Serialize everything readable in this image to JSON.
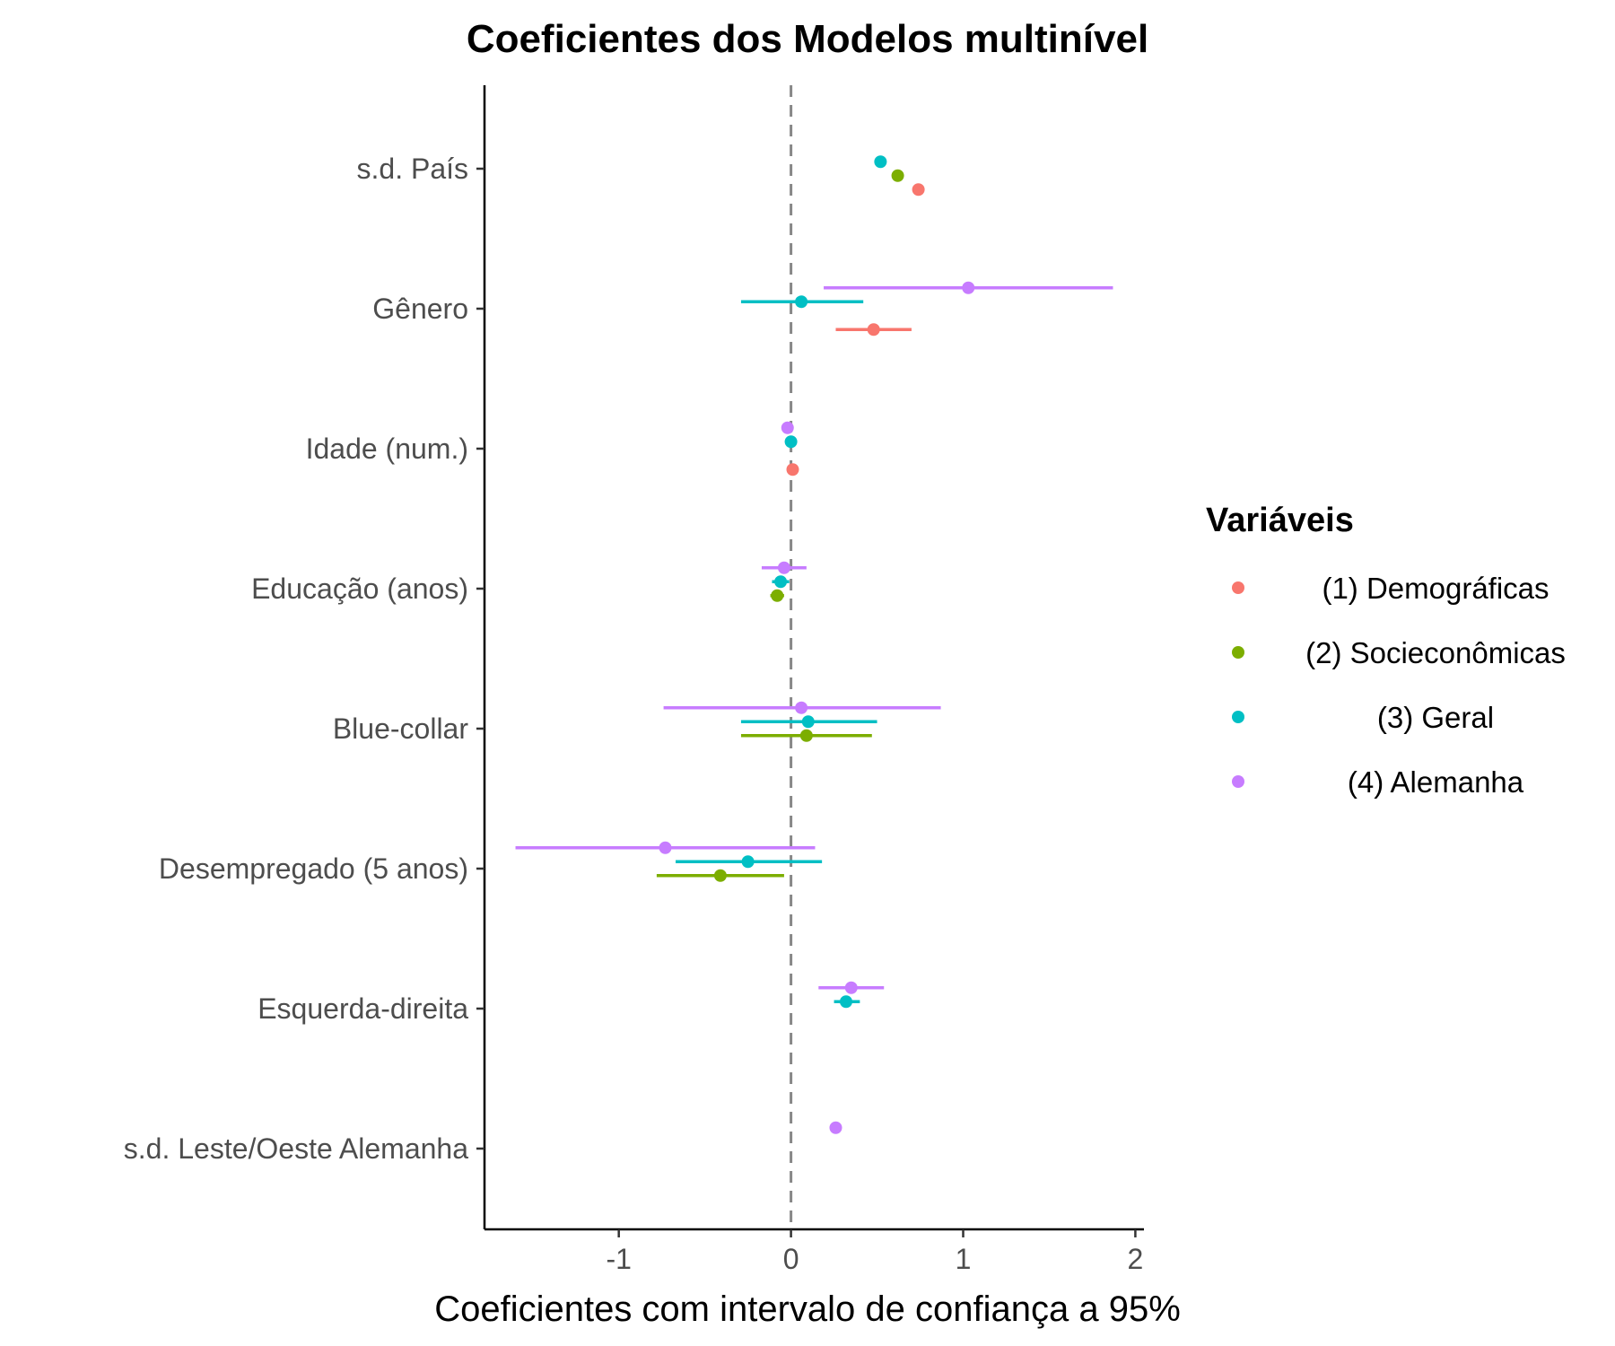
{
  "chart_data": {
    "type": "scatter",
    "title": "Coeficientes dos Modelos multinível",
    "xlabel": "Coeficientes com intervalo de confiança a 95%",
    "ylabel": "",
    "xlim": [
      -1.78,
      2.05
    ],
    "xticks": [
      -1,
      0,
      1,
      2
    ],
    "xtick_labels": [
      "-1",
      "0",
      "1",
      "2"
    ],
    "reference_line": 0,
    "grid": false,
    "legend_title": "Variáveis",
    "legend_position": "right",
    "categories": [
      "s.d. País",
      "Gênero",
      "Idade (num.)",
      "Educação (anos)",
      "Blue-collar",
      "Desempregado (5 anos)",
      "Esquerda-direita",
      "s.d. Leste/Oeste Alemanha"
    ],
    "series": [
      {
        "name": "(1) Demográficas",
        "color": "#F8766D",
        "points": [
          {
            "category": "s.d. País",
            "estimate": 0.74,
            "low": null,
            "high": null
          },
          {
            "category": "Gênero",
            "estimate": 0.48,
            "low": 0.26,
            "high": 0.7
          },
          {
            "category": "Idade (num.)",
            "estimate": 0.01,
            "low": null,
            "high": null
          }
        ]
      },
      {
        "name": "(2) Socieconômicas",
        "color": "#7CAE00",
        "points": [
          {
            "category": "s.d. País",
            "estimate": 0.62,
            "low": null,
            "high": null
          },
          {
            "category": "Educação (anos)",
            "estimate": -0.08,
            "low": -0.12,
            "high": -0.04
          },
          {
            "category": "Blue-collar",
            "estimate": 0.09,
            "low": -0.29,
            "high": 0.47
          },
          {
            "category": "Desempregado (5 anos)",
            "estimate": -0.41,
            "low": -0.78,
            "high": -0.04
          }
        ]
      },
      {
        "name": "(3) Geral",
        "color": "#00BFC4",
        "points": [
          {
            "category": "s.d. País",
            "estimate": 0.52,
            "low": null,
            "high": null
          },
          {
            "category": "Gênero",
            "estimate": 0.06,
            "low": -0.29,
            "high": 0.42
          },
          {
            "category": "Idade (num.)",
            "estimate": 0.0,
            "low": null,
            "high": null
          },
          {
            "category": "Educação (anos)",
            "estimate": -0.06,
            "low": -0.11,
            "high": -0.01
          },
          {
            "category": "Blue-collar",
            "estimate": 0.1,
            "low": -0.29,
            "high": 0.5
          },
          {
            "category": "Desempregado (5 anos)",
            "estimate": -0.25,
            "low": -0.67,
            "high": 0.18
          },
          {
            "category": "Esquerda-direita",
            "estimate": 0.32,
            "low": 0.25,
            "high": 0.4
          }
        ]
      },
      {
        "name": "(4) Alemanha",
        "color": "#C77CFF",
        "points": [
          {
            "category": "Gênero",
            "estimate": 1.03,
            "low": 0.19,
            "high": 1.87
          },
          {
            "category": "Idade (num.)",
            "estimate": -0.02,
            "low": null,
            "high": null
          },
          {
            "category": "Educação (anos)",
            "estimate": -0.04,
            "low": -0.17,
            "high": 0.09
          },
          {
            "category": "Blue-collar",
            "estimate": 0.06,
            "low": -0.74,
            "high": 0.87
          },
          {
            "category": "Desempregado (5 anos)",
            "estimate": -0.73,
            "low": -1.6,
            "high": 0.14
          },
          {
            "category": "Esquerda-direita",
            "estimate": 0.35,
            "low": 0.16,
            "high": 0.54
          },
          {
            "category": "s.d. Leste/Oeste Alemanha",
            "estimate": 0.26,
            "low": null,
            "high": null
          }
        ]
      }
    ]
  }
}
